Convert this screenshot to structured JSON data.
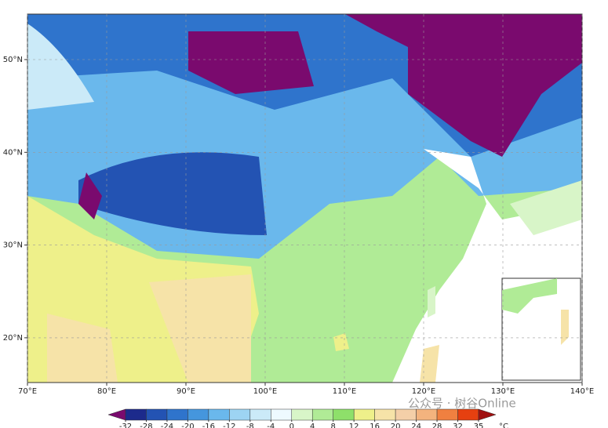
{
  "map": {
    "lat_ticks": [
      {
        "value": 20,
        "label": "20°N"
      },
      {
        "value": 30,
        "label": "30°N"
      },
      {
        "value": 40,
        "label": "40°N"
      },
      {
        "value": 50,
        "label": "50°N"
      }
    ],
    "lon_ticks": [
      {
        "value": 70,
        "label": "70°E"
      },
      {
        "value": 80,
        "label": "80°E"
      },
      {
        "value": 90,
        "label": "90°E"
      },
      {
        "value": 100,
        "label": "100°E"
      },
      {
        "value": 110,
        "label": "110°E"
      },
      {
        "value": 120,
        "label": "120°E"
      },
      {
        "value": 130,
        "label": "130°E"
      },
      {
        "value": 140,
        "label": "140°E"
      }
    ],
    "colorbar": {
      "levels": [
        -32,
        -28,
        -24,
        -20,
        -16,
        -12,
        -8,
        -4,
        0,
        4,
        8,
        12,
        16,
        20,
        24,
        28,
        32,
        35
      ],
      "colors": [
        "#7a0a6e",
        "#1c2a8c",
        "#2353b3",
        "#2f74cc",
        "#4596dd",
        "#6ab8ec",
        "#9dd4f3",
        "#cbeaf8",
        "#eefaff",
        "#d8f5c8",
        "#b0eb96",
        "#8ee06a",
        "#eef08a",
        "#f6e3a8",
        "#f4cfa8",
        "#f3b37e",
        "#f08040",
        "#e64010",
        "#a01010"
      ],
      "unit": "°C"
    },
    "watermark": "公众号 · 树谷Online"
  }
}
